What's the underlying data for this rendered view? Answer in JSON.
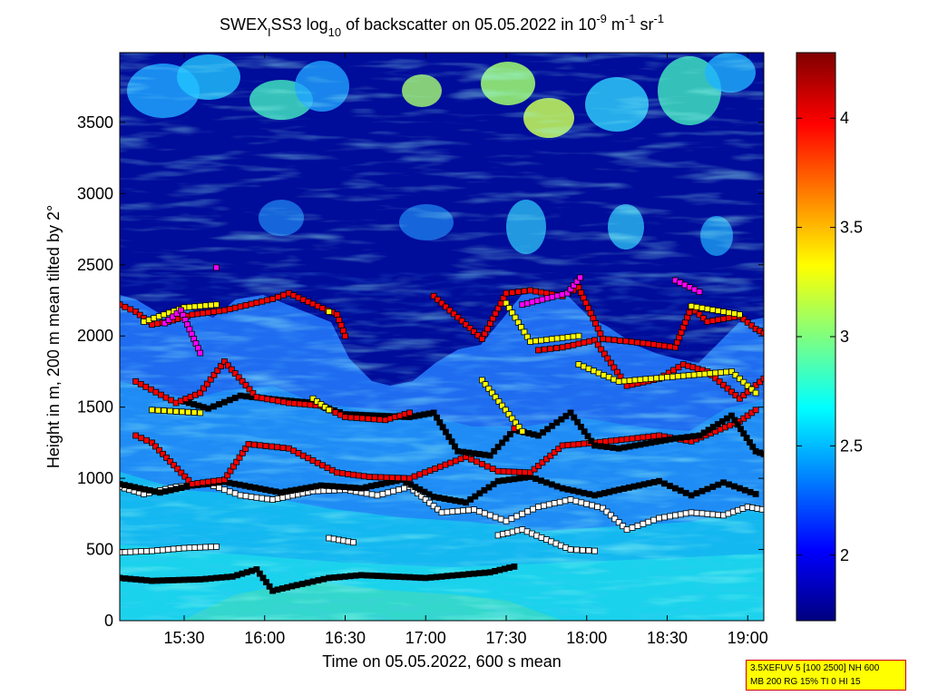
{
  "chart_data": {
    "type": "heatmap",
    "title": {
      "part1": "SWEX",
      "sub1": "I",
      "part2": "SS3 log",
      "sub2": "10",
      "part3": " of backscatter on 05.05.2022 in 10",
      "sup1": "-9",
      "part4": " m",
      "sup2": "-1",
      "part5": " sr",
      "sup3": "-1"
    },
    "xlabel": "Time on 05.05.2022, 600 s mean",
    "ylabel": "Height in m, 200 m mean tilted by 2°",
    "x_range_hours": [
      15.1,
      19.1
    ],
    "y_range": [
      0,
      3990
    ],
    "x_ticks": [
      {
        "value": 15.5,
        "label": "15:30"
      },
      {
        "value": 16.0,
        "label": "16:00"
      },
      {
        "value": 16.5,
        "label": "16:30"
      },
      {
        "value": 17.0,
        "label": "17:00"
      },
      {
        "value": 17.5,
        "label": "17:30"
      },
      {
        "value": 18.0,
        "label": "18:00"
      },
      {
        "value": 18.5,
        "label": "18:30"
      },
      {
        "value": 19.0,
        "label": "19:00"
      }
    ],
    "y_ticks": [
      0,
      500,
      1000,
      1500,
      2000,
      2500,
      3000,
      3500
    ],
    "colorbar": {
      "range": [
        1.7,
        4.3
      ],
      "ticks": [
        2,
        2.5,
        3,
        3.5,
        4
      ]
    },
    "layers": [
      {
        "marker_color": "#000000",
        "points": [
          [
            15.1,
            300
          ],
          [
            15.3,
            280
          ],
          [
            15.6,
            290
          ],
          [
            15.8,
            310
          ],
          [
            15.95,
            360
          ],
          [
            16.05,
            210
          ],
          [
            16.2,
            250
          ],
          [
            16.4,
            300
          ],
          [
            16.6,
            320
          ],
          [
            16.8,
            310
          ],
          [
            17.0,
            300
          ],
          [
            17.2,
            320
          ],
          [
            17.4,
            340
          ],
          [
            17.55,
            380
          ]
        ]
      },
      {
        "marker_color": "#ffffff",
        "points": [
          [
            15.1,
            480
          ],
          [
            15.3,
            490
          ],
          [
            15.5,
            510
          ],
          [
            15.7,
            520
          ],
          [
            16.4,
            580
          ],
          [
            16.55,
            550
          ],
          [
            17.45,
            600
          ],
          [
            17.6,
            640
          ],
          [
            17.9,
            500
          ],
          [
            18.05,
            490
          ]
        ]
      },
      {
        "marker_color": "#ffffff",
        "points": [
          [
            15.1,
            940
          ],
          [
            15.25,
            890
          ],
          [
            15.45,
            940
          ],
          [
            15.65,
            960
          ],
          [
            15.85,
            880
          ],
          [
            16.05,
            850
          ],
          [
            16.3,
            910
          ],
          [
            16.5,
            920
          ],
          [
            16.7,
            880
          ],
          [
            16.9,
            940
          ],
          [
            17.1,
            760
          ],
          [
            17.3,
            780
          ],
          [
            17.5,
            700
          ],
          [
            17.7,
            800
          ],
          [
            17.9,
            850
          ],
          [
            18.1,
            790
          ],
          [
            18.25,
            640
          ],
          [
            18.45,
            720
          ],
          [
            18.65,
            760
          ],
          [
            18.85,
            740
          ],
          [
            19.0,
            800
          ],
          [
            19.15,
            770
          ]
        ]
      },
      {
        "marker_color": "#000000",
        "points": [
          [
            15.1,
            960
          ],
          [
            15.35,
            900
          ],
          [
            15.55,
            950
          ],
          [
            15.75,
            975
          ],
          [
            16.1,
            900
          ],
          [
            16.35,
            950
          ],
          [
            16.6,
            930
          ],
          [
            16.85,
            990
          ],
          [
            17.05,
            870
          ],
          [
            17.25,
            830
          ],
          [
            17.45,
            980
          ],
          [
            17.65,
            1010
          ],
          [
            17.85,
            930
          ],
          [
            18.05,
            880
          ],
          [
            18.2,
            920
          ],
          [
            18.45,
            980
          ],
          [
            18.65,
            880
          ],
          [
            18.85,
            970
          ],
          [
            19.05,
            890
          ]
        ]
      },
      {
        "marker_color": "#ff0000",
        "points": [
          [
            15.2,
            1300
          ],
          [
            15.3,
            1250
          ],
          [
            15.55,
            960
          ],
          [
            15.75,
            990
          ],
          [
            15.9,
            1240
          ],
          [
            16.15,
            1210
          ],
          [
            16.45,
            1040
          ],
          [
            16.65,
            1010
          ],
          [
            16.9,
            1000
          ],
          [
            17.25,
            1150
          ],
          [
            17.45,
            1050
          ],
          [
            17.65,
            1040
          ],
          [
            17.85,
            1230
          ],
          [
            18.05,
            1250
          ],
          [
            18.45,
            1300
          ],
          [
            18.65,
            1260
          ],
          [
            18.95,
            1400
          ],
          [
            19.05,
            1480
          ]
        ]
      },
      {
        "marker_color": "#000000",
        "points": [
          [
            15.5,
            1540
          ],
          [
            15.65,
            1490
          ],
          [
            15.85,
            1580
          ],
          [
            16.1,
            1550
          ],
          [
            16.3,
            1530
          ],
          [
            16.5,
            1450
          ],
          [
            16.7,
            1440
          ],
          [
            16.9,
            1430
          ],
          [
            17.05,
            1460
          ],
          [
            17.2,
            1190
          ],
          [
            17.4,
            1160
          ],
          [
            17.55,
            1340
          ],
          [
            17.7,
            1300
          ],
          [
            17.9,
            1460
          ],
          [
            18.05,
            1230
          ],
          [
            18.2,
            1210
          ],
          [
            18.4,
            1250
          ],
          [
            18.55,
            1280
          ],
          [
            18.7,
            1300
          ],
          [
            18.9,
            1440
          ],
          [
            19.05,
            1190
          ],
          [
            19.1,
            1170
          ]
        ]
      },
      {
        "marker_color": "#ff0000",
        "points": [
          [
            15.2,
            1680
          ],
          [
            15.45,
            1530
          ],
          [
            15.6,
            1600
          ],
          [
            15.75,
            1820
          ],
          [
            15.95,
            1570
          ],
          [
            16.15,
            1530
          ],
          [
            16.35,
            1510
          ],
          [
            16.5,
            1430
          ],
          [
            16.75,
            1410
          ],
          [
            16.9,
            1460
          ],
          [
            17.55,
            1350
          ],
          [
            17.7,
            1900
          ],
          [
            17.85,
            1920
          ],
          [
            18.05,
            1970
          ],
          [
            18.25,
            1650
          ],
          [
            18.45,
            1700
          ],
          [
            18.6,
            1800
          ],
          [
            18.75,
            1750
          ],
          [
            18.95,
            1560
          ],
          [
            19.1,
            1700
          ]
        ]
      },
      {
        "marker_color": "#ffff00",
        "points": [
          [
            15.3,
            1480
          ],
          [
            15.45,
            1470
          ],
          [
            15.6,
            1460
          ],
          [
            16.3,
            1560
          ],
          [
            16.4,
            1480
          ],
          [
            17.35,
            1690
          ],
          [
            17.6,
            1330
          ],
          [
            17.95,
            1800
          ],
          [
            18.2,
            1680
          ],
          [
            18.6,
            1720
          ],
          [
            18.9,
            1750
          ],
          [
            19.05,
            1600
          ]
        ]
      },
      {
        "marker_color": "#ff0000",
        "points": [
          [
            15.1,
            2220
          ],
          [
            15.2,
            2170
          ],
          [
            15.3,
            2080
          ],
          [
            15.4,
            2100
          ],
          [
            15.55,
            2150
          ],
          [
            15.75,
            2180
          ],
          [
            16.05,
            2260
          ],
          [
            16.15,
            2300
          ],
          [
            16.45,
            2150
          ],
          [
            16.5,
            2000
          ],
          [
            17.05,
            2280
          ],
          [
            17.35,
            1980
          ],
          [
            17.5,
            2300
          ],
          [
            17.65,
            2320
          ],
          [
            17.85,
            2280
          ],
          [
            17.95,
            2340
          ],
          [
            18.1,
            1980
          ],
          [
            18.35,
            1950
          ],
          [
            18.55,
            1920
          ],
          [
            18.65,
            2200
          ],
          [
            18.75,
            2100
          ],
          [
            18.95,
            2140
          ],
          [
            19.05,
            2050
          ],
          [
            19.1,
            2020
          ]
        ]
      },
      {
        "marker_color": "#ffff00",
        "points": [
          [
            15.25,
            2100
          ],
          [
            15.5,
            2200
          ],
          [
            15.7,
            2220
          ],
          [
            16.4,
            2170
          ],
          [
            17.5,
            2230
          ],
          [
            17.65,
            1960
          ],
          [
            17.95,
            2000
          ],
          [
            18.65,
            2210
          ],
          [
            18.95,
            2150
          ]
        ]
      },
      {
        "marker_color": "#ff00ff",
        "points": [
          [
            15.38,
            2090
          ],
          [
            15.48,
            2180
          ],
          [
            15.6,
            1880
          ],
          [
            15.7,
            2480
          ],
          [
            17.6,
            2220
          ],
          [
            17.88,
            2300
          ],
          [
            17.96,
            2410
          ],
          [
            18.55,
            2390
          ],
          [
            18.7,
            2310
          ]
        ]
      }
    ]
  },
  "info_box": {
    "line1": "3.5XEFUV 5 [100 2500] NH 600",
    "line2": "MB 200 RG 15% TI 0 HI 15"
  }
}
